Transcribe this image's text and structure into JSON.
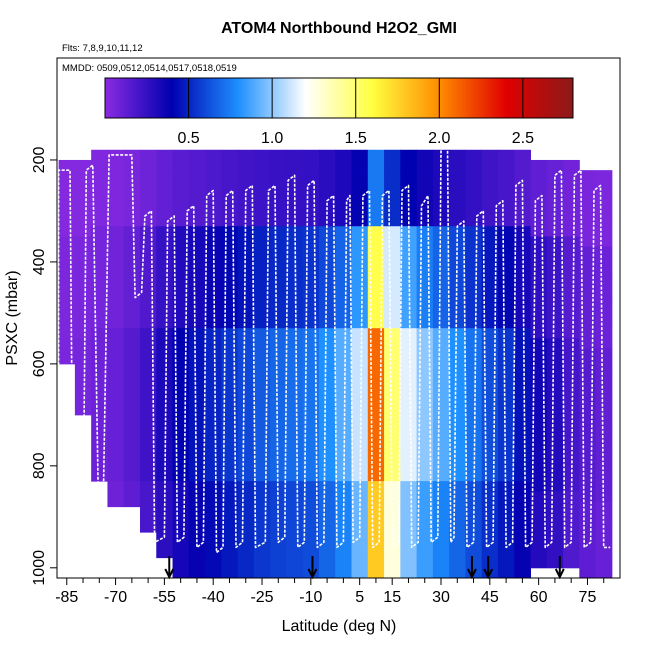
{
  "chart_data": {
    "type": "heatmap",
    "title": "ATOM4 Northbound H2O2_GMI",
    "subtitle_flights": "Flts: 7,8,9,10,11,12",
    "subtitle_dates": "MMDD: 0509,0512,0514,0517,0518,0519",
    "xlabel": "Latitude (deg N)",
    "ylabel": "PSXC (mbar)",
    "xlim": [
      -88,
      85
    ],
    "ylim": [
      1020,
      0
    ],
    "x_ticks": [
      -85,
      -70,
      -55,
      -40,
      -25,
      -10,
      5,
      15,
      30,
      45,
      60,
      75
    ],
    "x_minor_ticks": [
      -80,
      -75,
      -65,
      -60,
      -50,
      -45,
      -35,
      -30,
      -20,
      -15,
      -5,
      0,
      10,
      20,
      25,
      35,
      40,
      50,
      55,
      65,
      70,
      80
    ],
    "y_ticks": [
      200,
      400,
      600,
      800,
      1000
    ],
    "colorbar": {
      "range": [
        0,
        2.8
      ],
      "ticks": [
        0.5,
        1.0,
        1.5,
        2.0,
        2.5
      ],
      "tick_labels": [
        "0.5",
        "1.0",
        "1.5",
        "2.0",
        "2.5"
      ],
      "colormap": [
        "#8a2be2",
        "#0000b0",
        "#1e90ff",
        "#ffffff",
        "#ffff40",
        "#ff8c00",
        "#e00000",
        "#8b1a1a"
      ]
    },
    "x_bin_width": 5,
    "y_bin_height": 50,
    "bins": [
      {
        "lat": -85,
        "p_top": 200,
        "p_bottom": 600,
        "value": 0.05
      },
      {
        "lat": -80,
        "p_top": 200,
        "p_bottom": 700,
        "value": 0.06
      },
      {
        "lat": -75,
        "p_top": 180,
        "p_bottom": 800,
        "value": 0.08
      },
      {
        "lat": -70,
        "p_top": 180,
        "p_bottom": 850,
        "value": 0.1
      },
      {
        "lat": -65,
        "p_top": 180,
        "p_bottom": 850,
        "value": 0.15
      },
      {
        "lat": -60,
        "p_top": 180,
        "p_bottom": 900,
        "value": 0.22
      },
      {
        "lat": -55,
        "p_top": 180,
        "p_bottom": 950,
        "value": 0.32
      },
      {
        "lat": -50,
        "p_top": 180,
        "p_bottom": 1000,
        "value": 0.4
      },
      {
        "lat": -45,
        "p_top": 180,
        "p_bottom": 1000,
        "value": 0.45
      },
      {
        "lat": -40,
        "p_top": 180,
        "p_bottom": 1000,
        "value": 0.5
      },
      {
        "lat": -35,
        "p_top": 180,
        "p_bottom": 1000,
        "value": 0.55
      },
      {
        "lat": -30,
        "p_top": 180,
        "p_bottom": 1000,
        "value": 0.6
      },
      {
        "lat": -25,
        "p_top": 180,
        "p_bottom": 1000,
        "value": 0.65
      },
      {
        "lat": -20,
        "p_top": 180,
        "p_bottom": 1000,
        "value": 0.68
      },
      {
        "lat": -15,
        "p_top": 180,
        "p_bottom": 1000,
        "value": 0.7
      },
      {
        "lat": -10,
        "p_top": 180,
        "p_bottom": 1000,
        "value": 0.72
      },
      {
        "lat": -5,
        "p_top": 180,
        "p_bottom": 1000,
        "value": 0.8
      },
      {
        "lat": 0,
        "p_top": 180,
        "p_bottom": 1000,
        "value": 0.9
      },
      {
        "lat": 5,
        "p_top": 180,
        "p_bottom": 1000,
        "value": 1.1
      },
      {
        "lat": 10,
        "p_top": 180,
        "p_bottom": 1000,
        "value": 2.1
      },
      {
        "lat": 15,
        "p_top": 180,
        "p_bottom": 1000,
        "value": 1.5
      },
      {
        "lat": 20,
        "p_top": 180,
        "p_bottom": 1000,
        "value": 1.15
      },
      {
        "lat": 25,
        "p_top": 180,
        "p_bottom": 1000,
        "value": 1.0
      },
      {
        "lat": 30,
        "p_top": 180,
        "p_bottom": 1000,
        "value": 0.9
      },
      {
        "lat": 35,
        "p_top": 180,
        "p_bottom": 1000,
        "value": 0.8
      },
      {
        "lat": 40,
        "p_top": 180,
        "p_bottom": 1000,
        "value": 0.72
      },
      {
        "lat": 45,
        "p_top": 180,
        "p_bottom": 1000,
        "value": 0.62
      },
      {
        "lat": 50,
        "p_top": 180,
        "p_bottom": 1000,
        "value": 0.55
      },
      {
        "lat": 55,
        "p_top": 180,
        "p_bottom": 1000,
        "value": 0.45
      },
      {
        "lat": 60,
        "p_top": 200,
        "p_bottom": 1000,
        "value": 0.35
      },
      {
        "lat": 65,
        "p_top": 200,
        "p_bottom": 1000,
        "value": 0.3
      },
      {
        "lat": 70,
        "p_top": 200,
        "p_bottom": 1000,
        "value": 0.2
      },
      {
        "lat": 75,
        "p_top": 220,
        "p_bottom": 1000,
        "value": 0.15
      },
      {
        "lat": 80,
        "p_top": 220,
        "p_bottom": 1000,
        "value": 0.12
      }
    ],
    "flight_track": {
      "lat": [
        -87.5,
        -87.5,
        -84,
        -83,
        -80,
        -79,
        -77,
        -75,
        -74,
        -72,
        -65,
        -64,
        -62,
        -61,
        -59,
        -58,
        -55,
        -54,
        -52,
        -51,
        -49,
        -48,
        -46,
        -45,
        -43,
        -42,
        -40,
        -39,
        -37,
        -36,
        -34,
        -33,
        -31,
        -30,
        -28,
        -27,
        -24,
        -23,
        -21,
        -20,
        -18,
        -17,
        -15,
        -14,
        -12,
        -11,
        -9,
        -8,
        -6,
        -5,
        -3,
        -2,
        0,
        1,
        2,
        3,
        5,
        6,
        8,
        9,
        11,
        12,
        14,
        15,
        17,
        18,
        20,
        21,
        23,
        24,
        26,
        27,
        29,
        30,
        32,
        33,
        34,
        35,
        37,
        38,
        40,
        41,
        43,
        44,
        46,
        47,
        49,
        50,
        52,
        53,
        55,
        56,
        58,
        59,
        61,
        62,
        64,
        65,
        67,
        68,
        70,
        71,
        73,
        74,
        76,
        77,
        79,
        80,
        82
      ],
      "psxc": [
        620,
        220,
        220,
        980,
        960,
        220,
        210,
        980,
        950,
        190,
        190,
        470,
        460,
        310,
        300,
        950,
        940,
        320,
        310,
        950,
        940,
        300,
        290,
        960,
        950,
        270,
        260,
        970,
        960,
        270,
        260,
        960,
        950,
        260,
        250,
        960,
        950,
        260,
        250,
        950,
        940,
        240,
        230,
        960,
        950,
        250,
        240,
        960,
        950,
        280,
        270,
        960,
        950,
        280,
        270,
        950,
        940,
        270,
        260,
        960,
        950,
        270,
        260,
        960,
        950,
        260,
        250,
        960,
        950,
        290,
        270,
        950,
        940,
        180,
        170,
        950,
        940,
        330,
        320,
        960,
        950,
        310,
        300,
        960,
        950,
        290,
        280,
        960,
        950,
        250,
        240,
        960,
        950,
        280,
        270,
        960,
        950,
        230,
        220,
        960,
        950,
        230,
        220,
        960,
        950,
        260,
        250,
        960,
        960
      ]
    },
    "profile_arrows_lat": [
      -53.5,
      -9.5,
      39.5,
      44.5,
      66.5
    ],
    "title_font_note": "title rendered bold"
  }
}
